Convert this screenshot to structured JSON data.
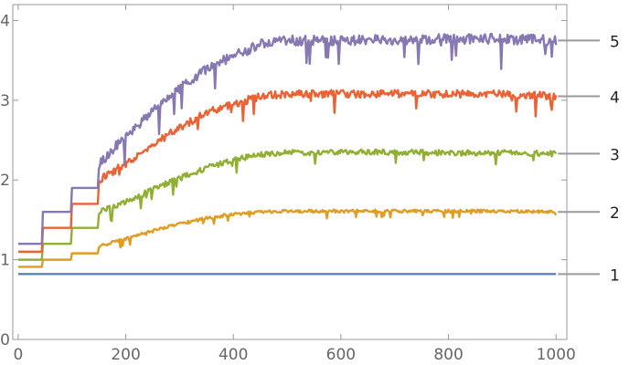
{
  "chart_data": {
    "type": "line",
    "title": "",
    "xlabel": "",
    "ylabel": "",
    "xlim": [
      -10,
      1020
    ],
    "ylim": [
      0,
      4.2
    ],
    "x_ticks": [
      0,
      200,
      400,
      600,
      800,
      1000
    ],
    "x_tick_labels": [
      "0",
      "200",
      "400",
      "600",
      "800",
      "1000"
    ],
    "y_ticks": [
      0,
      1,
      2,
      3,
      4
    ],
    "y_tick_labels": [
      "0",
      "1",
      "2",
      "3",
      "4"
    ],
    "grid": false,
    "legend": "right-edge labels",
    "x_range": [
      0,
      1000
    ],
    "series": [
      {
        "label": "1",
        "color": "#5e81b5",
        "points": [
          [
            0,
            0.82
          ],
          [
            1000,
            0.82
          ]
        ]
      },
      {
        "label": "2",
        "color": "#e19c24",
        "points": [
          [
            0,
            0.91
          ],
          [
            45,
            0.91
          ],
          [
            45,
            1.0
          ],
          [
            100,
            1.0
          ],
          [
            100,
            1.08
          ],
          [
            150,
            1.08
          ],
          [
            150,
            1.17
          ],
          [
            200,
            1.26
          ],
          [
            250,
            1.36
          ],
          [
            300,
            1.45
          ],
          [
            350,
            1.52
          ],
          [
            400,
            1.57
          ],
          [
            450,
            1.6
          ],
          [
            500,
            1.61
          ],
          [
            600,
            1.61
          ],
          [
            700,
            1.61
          ],
          [
            800,
            1.61
          ],
          [
            900,
            1.61
          ],
          [
            1000,
            1.6
          ]
        ]
      },
      {
        "label": "3",
        "color": "#8fb032",
        "points": [
          [
            0,
            1.0
          ],
          [
            45,
            1.0
          ],
          [
            45,
            1.2
          ],
          [
            100,
            1.2
          ],
          [
            100,
            1.4
          ],
          [
            150,
            1.4
          ],
          [
            150,
            1.6
          ],
          [
            200,
            1.72
          ],
          [
            250,
            1.88
          ],
          [
            300,
            2.02
          ],
          [
            350,
            2.15
          ],
          [
            400,
            2.25
          ],
          [
            450,
            2.32
          ],
          [
            500,
            2.34
          ],
          [
            600,
            2.35
          ],
          [
            700,
            2.35
          ],
          [
            800,
            2.34
          ],
          [
            900,
            2.34
          ],
          [
            1000,
            2.33
          ]
        ]
      },
      {
        "label": "4",
        "color": "#eb6235",
        "points": [
          [
            0,
            1.1
          ],
          [
            45,
            1.1
          ],
          [
            45,
            1.4
          ],
          [
            100,
            1.4
          ],
          [
            100,
            1.7
          ],
          [
            150,
            1.7
          ],
          [
            150,
            2.0
          ],
          [
            200,
            2.2
          ],
          [
            250,
            2.45
          ],
          [
            300,
            2.65
          ],
          [
            350,
            2.85
          ],
          [
            400,
            2.95
          ],
          [
            450,
            3.05
          ],
          [
            500,
            3.08
          ],
          [
            600,
            3.08
          ],
          [
            700,
            3.08
          ],
          [
            800,
            3.08
          ],
          [
            900,
            3.08
          ],
          [
            1000,
            3.05
          ]
        ]
      },
      {
        "label": "5",
        "color": "#8778b3",
        "points": [
          [
            0,
            1.2
          ],
          [
            45,
            1.2
          ],
          [
            45,
            1.6
          ],
          [
            100,
            1.6
          ],
          [
            100,
            1.9
          ],
          [
            150,
            1.9
          ],
          [
            150,
            2.2
          ],
          [
            200,
            2.55
          ],
          [
            250,
            2.85
          ],
          [
            300,
            3.15
          ],
          [
            350,
            3.4
          ],
          [
            400,
            3.55
          ],
          [
            450,
            3.7
          ],
          [
            500,
            3.75
          ],
          [
            600,
            3.75
          ],
          [
            700,
            3.76
          ],
          [
            800,
            3.77
          ],
          [
            900,
            3.77
          ],
          [
            1000,
            3.75
          ]
        ]
      }
    ]
  }
}
